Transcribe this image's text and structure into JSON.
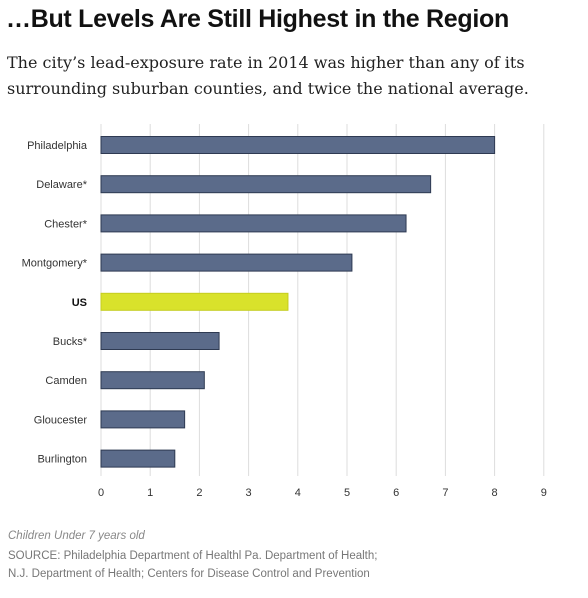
{
  "header": {
    "title": "…But Levels Are Still Highest in the Region",
    "subtitle": "The city’s lead-exposure rate in 2014 was higher than any of its surrounding suburban counties, and twice the national average."
  },
  "chart_data": {
    "type": "bar",
    "orientation": "horizontal",
    "title": "…But Levels Are Still Highest in the Region",
    "xlabel": "",
    "ylabel": "",
    "xlim": [
      0,
      9
    ],
    "xticks": [
      0,
      1,
      2,
      3,
      4,
      5,
      6,
      7,
      8,
      9
    ],
    "grid": "vertical",
    "categories": [
      "Philadelphia",
      "Delaware*",
      "Chester*",
      "Montgomery*",
      "US",
      "Bucks*",
      "Camden",
      "Gloucester",
      "Burlington"
    ],
    "values": [
      8.0,
      6.7,
      6.2,
      5.1,
      3.8,
      2.4,
      2.1,
      1.7,
      1.5
    ],
    "highlight": "US",
    "colors": {
      "bar": "#5b6b8a",
      "highlight": "#d9e22b",
      "grid": "#dddddd"
    }
  },
  "footer": {
    "note": "Children Under 7 years old",
    "source_line1": "SOURCE: Philadelphia Department of Healthl Pa. Department of Health;",
    "source_line2": "N.J. Department of Health; Centers for Disease Control and Prevention"
  }
}
